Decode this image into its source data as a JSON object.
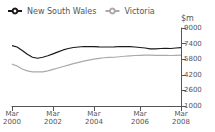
{
  "chart_data": {
    "type": "line",
    "ylabel": "$m",
    "categories": [
      "Mar\n2000",
      null,
      null,
      null,
      null,
      null,
      null,
      null,
      "Mar\n2002",
      null,
      null,
      null,
      null,
      null,
      null,
      null,
      "Mar\n2004",
      null,
      null,
      null,
      null,
      null,
      null,
      null,
      null,
      "Mar\n2006",
      null,
      null,
      null,
      null,
      null,
      null,
      null,
      "Mar\n2008"
    ],
    "series": [
      {
        "name": "New South Wales",
        "color": "#1a1a1a",
        "values": [
          7200,
          7050,
          6700,
          6300,
          6000,
          5900,
          6000,
          6150,
          6350,
          6550,
          6750,
          6900,
          7000,
          7050,
          7100,
          7100,
          7080,
          7060,
          7050,
          7050,
          7060,
          7100,
          7100,
          7080,
          7050,
          7000,
          6950,
          6850,
          6850,
          6900,
          6920,
          6900,
          6950,
          6980
        ]
      },
      {
        "name": "Victoria",
        "color": "#aaaaaa",
        "values": [
          5300,
          5100,
          4800,
          4600,
          4500,
          4500,
          4500,
          4600,
          4750,
          4900,
          5050,
          5200,
          5350,
          5480,
          5600,
          5700,
          5800,
          5880,
          5950,
          5980,
          6000,
          6050,
          6100,
          6150,
          6180,
          6200,
          6220,
          6220,
          6200,
          6200,
          6200,
          6180,
          6200,
          6210
        ]
      }
    ],
    "ylim": [
      1000,
      9000
    ],
    "yticks": [
      1000,
      2600,
      4200,
      5800,
      7400,
      9000
    ],
    "grid": false,
    "legend": "upper left"
  }
}
